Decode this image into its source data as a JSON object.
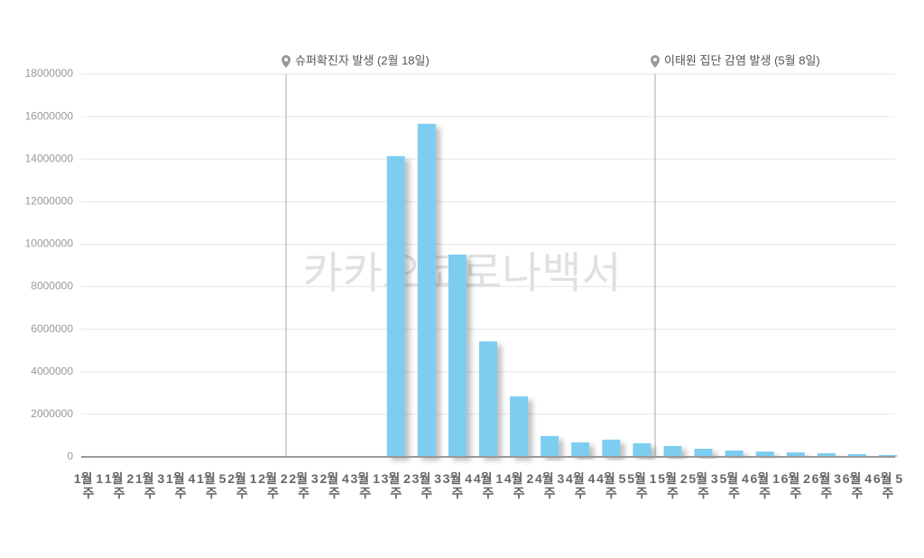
{
  "chart_data": {
    "type": "bar",
    "watermark": "카카오코로나백서",
    "annotations": [
      "슈퍼확진자 발생 (2월 18일)",
      "이태원 집단 감염 발생 (5월 8일)"
    ],
    "categories": [
      "1월 1주",
      "1월 2주",
      "1월 3주",
      "1월 4주",
      "1월 5주",
      "2월 1주",
      "2월 2주",
      "2월 3주",
      "2월 4주",
      "3월 1주",
      "3월 2주",
      "3월 3주",
      "3월 4주",
      "4월 1주",
      "4월 2주",
      "4월 3주",
      "4월 4주",
      "4월 5주",
      "5월 1주",
      "5월 2주",
      "5월 3주",
      "5월 4주",
      "6월 1주",
      "6월 2주",
      "6월 3주",
      "6월 4주",
      "6월 5주"
    ],
    "values": [
      0,
      0,
      0,
      0,
      0,
      0,
      0,
      0,
      0,
      0,
      14140000,
      15660000,
      9510000,
      5430000,
      2840000,
      980000,
      680000,
      810000,
      640000,
      510000,
      380000,
      300000,
      250000,
      210000,
      170000,
      130000,
      90000
    ],
    "color": "#7dcdf0",
    "ylim": [
      0,
      18000000
    ],
    "yticks": [
      0,
      2000000,
      4000000,
      6000000,
      8000000,
      10000000,
      12000000,
      14000000,
      16000000,
      18000000
    ],
    "grid": true
  }
}
